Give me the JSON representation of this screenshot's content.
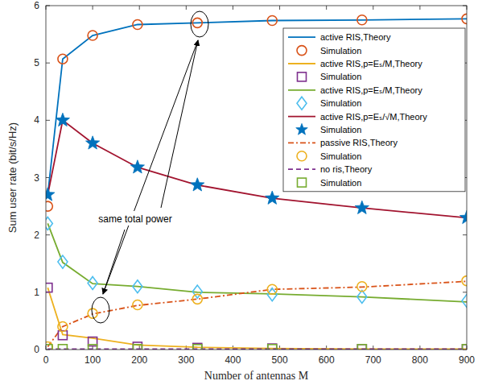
{
  "chart_data": {
    "type": "line",
    "x_label": "Number of antennas M",
    "y_label": "Sum user rate (bit/s/Hz)",
    "annotations": [
      "same total power"
    ],
    "x": [
      4,
      36,
      100,
      196,
      324,
      484,
      676,
      900
    ],
    "xlim": [
      0,
      900
    ],
    "xticks": [
      0,
      100,
      200,
      300,
      400,
      500,
      600,
      700,
      800,
      900
    ],
    "ylim": [
      0,
      6
    ],
    "yticks": [
      0,
      1,
      2,
      3,
      4,
      5,
      6
    ],
    "grid": false,
    "legend": "upper right",
    "series": [
      {
        "name": "active RIS,Theory",
        "type": "line",
        "color": "#0072bd",
        "line_style": "solid",
        "marker": "none",
        "values": [
          2.7,
          5.07,
          5.48,
          5.67,
          5.7,
          5.74,
          5.75,
          5.77
        ]
      },
      {
        "name": "Simulation",
        "type": "scatter",
        "color": "#d95319",
        "marker": "circle",
        "values": [
          2.5,
          5.07,
          5.48,
          5.67,
          5.7,
          5.74,
          5.75,
          5.77
        ]
      },
      {
        "name": "active RIS,p=Eₛ/M,Theory",
        "type": "line",
        "color": "#edb120",
        "line_style": "solid",
        "marker": "none",
        "values": [
          1.08,
          0.26,
          0.2,
          0.08,
          0.04,
          0.02,
          0.01,
          0.01
        ]
      },
      {
        "name": "Simulation",
        "type": "scatter",
        "color": "#7e2f8e",
        "marker": "square",
        "values": [
          1.08,
          0.25,
          0.14,
          0.05,
          0.03,
          0.02,
          0.01,
          0.01
        ]
      },
      {
        "name": "active RIS,p=Eₛ/M,Theory",
        "type": "line",
        "color": "#77ac30",
        "line_style": "solid",
        "marker": "none",
        "values": [
          2.2,
          1.52,
          1.15,
          1.1,
          1.0,
          0.97,
          0.92,
          0.83
        ]
      },
      {
        "name": "Simulation",
        "type": "scatter",
        "color": "#4dbeee",
        "marker": "diamond",
        "values": [
          2.2,
          1.53,
          1.16,
          1.1,
          1.01,
          0.96,
          0.92,
          0.85
        ]
      },
      {
        "name": "active RIS,p=Eₛ/√M,Theory",
        "type": "line",
        "color": "#a2142f",
        "line_style": "solid",
        "marker": "none",
        "values": [
          2.7,
          4.0,
          3.6,
          3.18,
          2.87,
          2.64,
          2.47,
          2.3
        ]
      },
      {
        "name": "Simulation",
        "type": "scatter",
        "color": "#0072bd",
        "marker": "star",
        "values": [
          2.7,
          4.0,
          3.6,
          3.18,
          2.87,
          2.64,
          2.47,
          2.3
        ]
      },
      {
        "name": "passive RIS,Theory",
        "type": "line",
        "color": "#d95319",
        "line_style": "dashdot",
        "marker": "none",
        "values": [
          0.05,
          0.4,
          0.62,
          0.77,
          0.88,
          1.05,
          1.09,
          1.19
        ]
      },
      {
        "name": "Simulation",
        "type": "scatter",
        "color": "#edb120",
        "marker": "circle",
        "values": [
          0.05,
          0.4,
          0.63,
          0.78,
          0.88,
          1.05,
          1.1,
          1.2
        ]
      },
      {
        "name": "no ris,Theory",
        "type": "line",
        "color": "#7e2f8e",
        "line_style": "dashed",
        "marker": "none",
        "values": [
          0.01,
          0.01,
          0.01,
          0.01,
          0.01,
          0.01,
          0.01,
          0.01
        ]
      },
      {
        "name": "Simulation",
        "type": "scatter",
        "color": "#77ac30",
        "marker": "square",
        "values": [
          0.01,
          0.01,
          0.01,
          0.01,
          0.01,
          0.01,
          0.01,
          0.01
        ]
      }
    ]
  }
}
